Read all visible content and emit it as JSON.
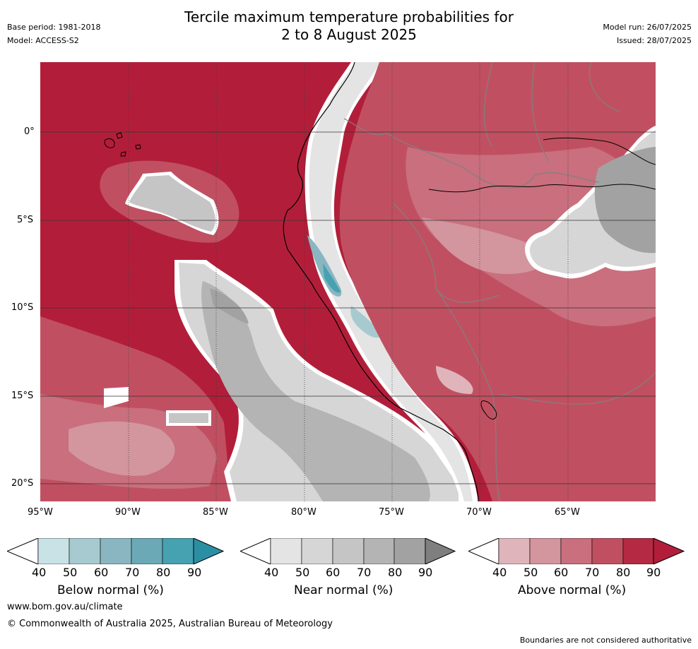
{
  "header": {
    "title_line1": "Tercile maximum temperature probabilities for",
    "title_line2": "2 to 8 August 2025",
    "base_period": "Base period: 1981-2018",
    "model": "Model: ACCESS-S2",
    "model_run": "Model run: 26/07/2025",
    "issued": "Issued: 28/07/2025"
  },
  "map": {
    "lat_labels": [
      "0°",
      "5°S",
      "10°S",
      "15°S",
      "20°S"
    ],
    "lon_labels": [
      "95°W",
      "90°W",
      "85°W",
      "80°W",
      "75°W",
      "70°W",
      "65°W"
    ],
    "colors": {
      "ocean_above_90": "#b21e3a",
      "grid": "#333333",
      "coast": "#000000",
      "border": "#808080",
      "boundary_white": "#ffffff"
    }
  },
  "colorbars": {
    "below": {
      "label": "Below normal (%)",
      "ticks": [
        "40",
        "50",
        "60",
        "70",
        "80",
        "90"
      ],
      "colors": [
        "#c9e2e6",
        "#a7cad0",
        "#8ab6c1",
        "#6aa9b5",
        "#46a1b1",
        "#2b8fa4"
      ]
    },
    "near": {
      "label": "Near normal (%)",
      "ticks": [
        "40",
        "50",
        "60",
        "70",
        "80",
        "90"
      ],
      "colors": [
        "#e4e4e4",
        "#d6d6d6",
        "#c5c5c5",
        "#b4b4b4",
        "#a2a2a2",
        "#7f7f7f"
      ]
    },
    "above": {
      "label": "Above normal (%)",
      "ticks": [
        "40",
        "50",
        "60",
        "70",
        "80",
        "90"
      ],
      "colors": [
        "#e0b4bb",
        "#d3959e",
        "#c96f7d",
        "#c05061",
        "#b42a43",
        "#b21e3a"
      ]
    }
  },
  "footer": {
    "url": "www.bom.gov.au/climate",
    "copyright": "© Commonwealth of Australia 2025, Australian Bureau of Meteorology",
    "disclaimer": "Boundaries are not considered authoritative"
  }
}
